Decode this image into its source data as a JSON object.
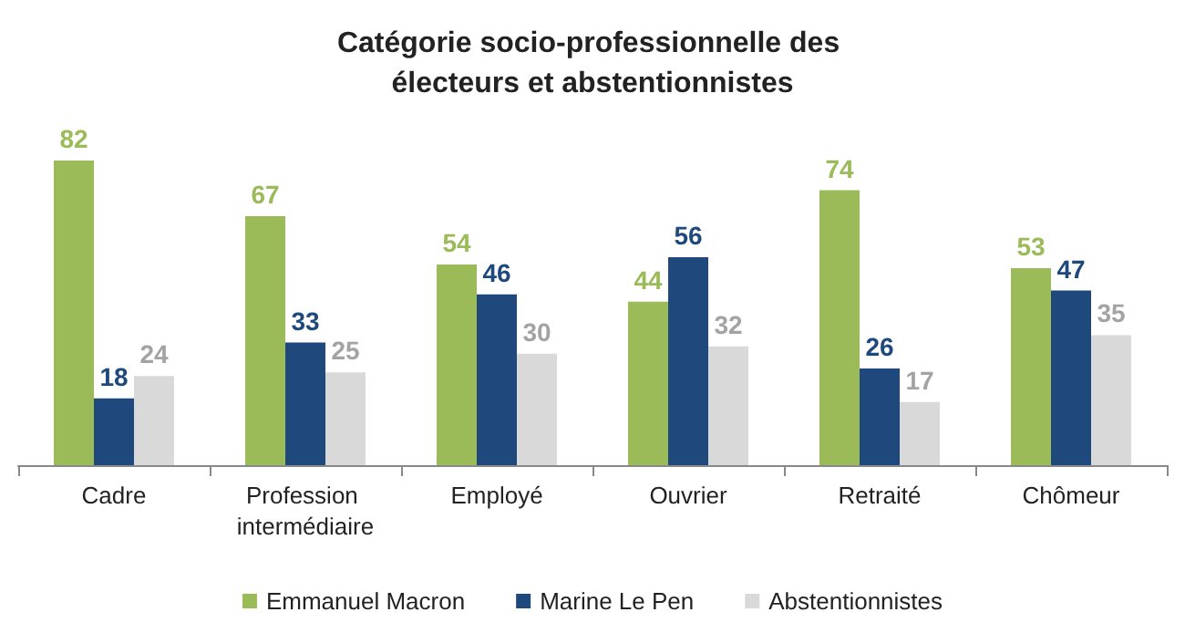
{
  "chart_data": {
    "type": "bar",
    "title": "Catégorie socio-professionnelle des électeurs et abstentionnistes",
    "categories": [
      "Cadre",
      "Profession intermédiaire",
      "Employé",
      "Ouvrier",
      "Retraité",
      "Chômeur"
    ],
    "series": [
      {
        "name": "Emmanuel Macron",
        "color": "#9bbb59",
        "values": [
          82,
          67,
          54,
          44,
          74,
          53
        ]
      },
      {
        "name": "Marine Le Pen",
        "color": "#1f497d",
        "values": [
          18,
          33,
          46,
          56,
          26,
          47
        ]
      },
      {
        "name": "Abstentionnistes",
        "color": "#d9d9d9",
        "values": [
          24,
          25,
          30,
          32,
          17,
          35
        ]
      }
    ],
    "data_labels": true,
    "legend": "bottom",
    "grid": false
  }
}
